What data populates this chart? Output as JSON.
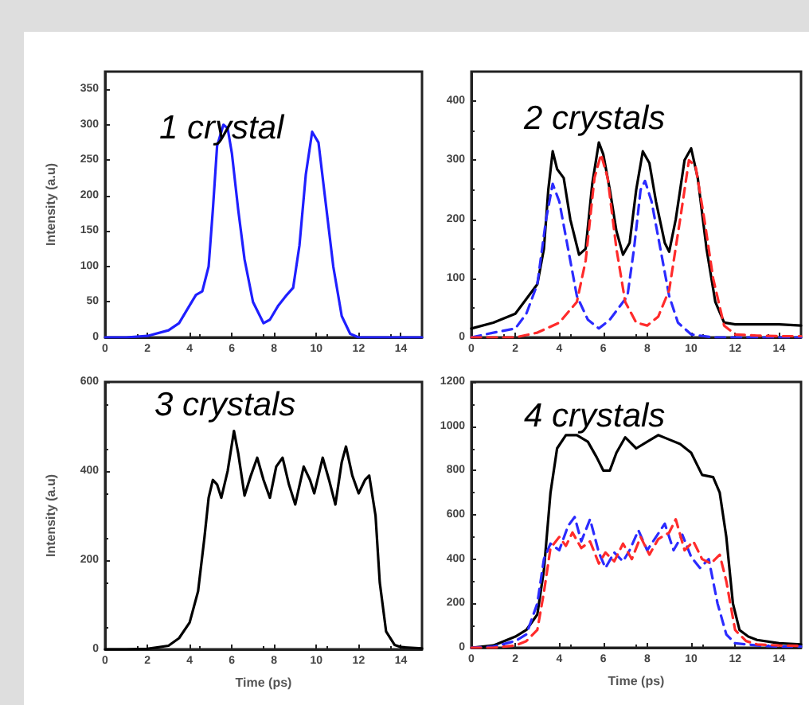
{
  "chart_data": [
    {
      "type": "line",
      "title": "1 crystal",
      "ylabel": "Intensity (a.u)",
      "xlim": [
        0,
        15
      ],
      "xticks": [
        0,
        2,
        4,
        6,
        8,
        10,
        12,
        14
      ],
      "ylim": [
        0,
        375
      ],
      "yticks": [
        0,
        50,
        100,
        150,
        200,
        250,
        300,
        350
      ],
      "grid": false,
      "marker": "none",
      "series": [
        {
          "color": "#1f1fff",
          "line_style": "solid",
          "x": [
            0,
            1,
            2,
            3,
            3.5,
            4,
            4.3,
            4.6,
            4.9,
            5.1,
            5.3,
            5.6,
            5.8,
            6.0,
            6.3,
            6.6,
            7.0,
            7.5,
            7.8,
            8.2,
            8.6,
            8.9,
            9.2,
            9.5,
            9.8,
            10.1,
            10.4,
            10.8,
            11.2,
            11.6,
            12,
            13,
            14,
            15
          ],
          "values": [
            0,
            0,
            2,
            10,
            20,
            45,
            60,
            65,
            100,
            180,
            270,
            300,
            295,
            260,
            180,
            110,
            50,
            20,
            25,
            45,
            60,
            70,
            130,
            230,
            290,
            275,
            200,
            100,
            30,
            5,
            0,
            0,
            0,
            0
          ]
        }
      ]
    },
    {
      "type": "line",
      "title": "2 crystals",
      "xlim": [
        0,
        15
      ],
      "xticks": [
        0,
        2,
        4,
        6,
        8,
        10,
        12,
        14
      ],
      "ylim": [
        0,
        450
      ],
      "yticks": [
        0,
        100,
        200,
        300,
        400
      ],
      "grid": false,
      "marker": "none",
      "series": [
        {
          "color": "#000000",
          "line_style": "solid",
          "x": [
            0,
            1,
            2,
            2.5,
            3,
            3.3,
            3.5,
            3.7,
            3.9,
            4.2,
            4.5,
            4.9,
            5.2,
            5.5,
            5.8,
            6.0,
            6.3,
            6.6,
            6.9,
            7.2,
            7.5,
            7.8,
            8.1,
            8.4,
            8.8,
            9.0,
            9.3,
            9.7,
            10.0,
            10.3,
            10.7,
            11.1,
            11.5,
            12,
            13,
            14,
            15
          ],
          "values": [
            15,
            25,
            40,
            65,
            90,
            150,
            250,
            315,
            285,
            270,
            200,
            140,
            150,
            260,
            330,
            310,
            250,
            180,
            140,
            160,
            250,
            315,
            295,
            230,
            160,
            145,
            200,
            300,
            320,
            270,
            150,
            60,
            25,
            22,
            22,
            22,
            20
          ]
        },
        {
          "color": "#2b2bff",
          "line_style": "dashed",
          "x": [
            0,
            1,
            2,
            2.5,
            3,
            3.4,
            3.7,
            4.0,
            4.4,
            4.8,
            5.3,
            5.8,
            6.3,
            6.8,
            7.1,
            7.4,
            7.7,
            7.9,
            8.2,
            8.6,
            9.0,
            9.4,
            10,
            11,
            12,
            13,
            14,
            15
          ],
          "values": [
            0,
            8,
            15,
            40,
            90,
            200,
            260,
            230,
            150,
            70,
            30,
            15,
            30,
            55,
            70,
            150,
            250,
            265,
            230,
            150,
            70,
            25,
            5,
            0,
            0,
            0,
            0,
            0
          ]
        },
        {
          "color": "#ff2b2b",
          "line_style": "dashed",
          "x": [
            0,
            2,
            3,
            4,
            4.8,
            5.2,
            5.6,
            5.9,
            6.2,
            6.6,
            7.0,
            7.5,
            8.0,
            8.5,
            9.0,
            9.5,
            9.9,
            10.2,
            10.6,
            11.0,
            11.5,
            12,
            13,
            14,
            15
          ],
          "values": [
            0,
            0,
            8,
            25,
            60,
            130,
            270,
            310,
            270,
            150,
            60,
            25,
            20,
            35,
            80,
            200,
            300,
            290,
            200,
            100,
            20,
            5,
            3,
            2,
            2
          ]
        }
      ]
    },
    {
      "type": "line",
      "title": "3 crystals",
      "xlabel": "Time (ps)",
      "ylabel": "Intensity (a.u)",
      "xlim": [
        0,
        15
      ],
      "xticks": [
        0,
        2,
        4,
        6,
        8,
        10,
        12,
        14
      ],
      "ylim": [
        0,
        600
      ],
      "yticks": [
        0,
        200,
        400,
        600
      ],
      "grid": false,
      "marker": "none",
      "series": [
        {
          "color": "#000000",
          "line_style": "solid",
          "x": [
            0,
            1,
            2,
            3,
            3.5,
            4,
            4.4,
            4.7,
            4.9,
            5.1,
            5.3,
            5.5,
            5.8,
            6.1,
            6.3,
            6.6,
            6.9,
            7.2,
            7.5,
            7.8,
            8.1,
            8.4,
            8.7,
            9.0,
            9.4,
            9.7,
            9.9,
            10.3,
            10.6,
            10.9,
            11.2,
            11.4,
            11.7,
            12.0,
            12.3,
            12.5,
            12.8,
            13.0,
            13.3,
            13.7,
            14,
            15
          ],
          "values": [
            0,
            0,
            1,
            8,
            25,
            60,
            130,
            250,
            340,
            380,
            370,
            340,
            400,
            490,
            440,
            345,
            390,
            430,
            380,
            340,
            410,
            430,
            370,
            325,
            410,
            380,
            350,
            430,
            380,
            325,
            420,
            455,
            390,
            350,
            380,
            390,
            300,
            150,
            40,
            10,
            5,
            2
          ]
        }
      ]
    },
    {
      "type": "line",
      "title": "4 crystals",
      "xlabel": "Time (ps)",
      "xlim": [
        0,
        15
      ],
      "xticks": [
        0,
        2,
        4,
        6,
        8,
        10,
        12,
        14
      ],
      "ylim": [
        0,
        1200
      ],
      "yticks": [
        0,
        200,
        400,
        600,
        800,
        1000,
        1200
      ],
      "grid": false,
      "marker": "none",
      "series": [
        {
          "color": "#000000",
          "line_style": "solid",
          "x": [
            0,
            1,
            2,
            2.5,
            3,
            3.3,
            3.6,
            3.9,
            4.3,
            4.8,
            5.3,
            5.7,
            6.0,
            6.3,
            6.6,
            7.0,
            7.5,
            8.0,
            8.5,
            9.0,
            9.5,
            10.0,
            10.5,
            11.0,
            11.3,
            11.6,
            11.9,
            12.2,
            12.6,
            13,
            14,
            15
          ],
          "values": [
            0,
            10,
            50,
            80,
            150,
            350,
            700,
            900,
            960,
            960,
            930,
            860,
            800,
            800,
            880,
            950,
            900,
            930,
            960,
            940,
            920,
            880,
            780,
            770,
            700,
            500,
            200,
            80,
            50,
            35,
            20,
            15
          ]
        },
        {
          "color": "#2b2bff",
          "line_style": "dashed",
          "x": [
            0,
            1,
            2,
            2.5,
            3,
            3.3,
            3.6,
            4.0,
            4.4,
            4.7,
            5.0,
            5.4,
            5.8,
            6.1,
            6.5,
            6.9,
            7.2,
            7.6,
            8.0,
            8.4,
            8.8,
            9.2,
            9.6,
            10.0,
            10.4,
            10.8,
            11.2,
            11.6,
            12,
            13,
            14,
            15
          ],
          "values": [
            0,
            5,
            30,
            60,
            200,
            400,
            470,
            440,
            550,
            590,
            480,
            580,
            430,
            360,
            430,
            390,
            440,
            530,
            440,
            500,
            560,
            440,
            510,
            410,
            360,
            400,
            200,
            60,
            20,
            10,
            5,
            5
          ]
        },
        {
          "color": "#ff2b2b",
          "line_style": "dashed",
          "x": [
            0,
            1,
            2,
            2.5,
            3,
            3.3,
            3.6,
            4.0,
            4.3,
            4.6,
            5.0,
            5.4,
            5.8,
            6.1,
            6.5,
            6.9,
            7.3,
            7.7,
            8.1,
            8.5,
            9.0,
            9.3,
            9.7,
            10.1,
            10.5,
            10.9,
            11.3,
            11.6,
            12,
            12.5,
            13,
            14,
            15
          ],
          "values": [
            0,
            0,
            10,
            30,
            80,
            250,
            450,
            500,
            460,
            520,
            450,
            480,
            380,
            430,
            390,
            470,
            400,
            500,
            420,
            490,
            520,
            580,
            440,
            480,
            400,
            380,
            420,
            300,
            80,
            30,
            15,
            10,
            8
          ]
        }
      ]
    }
  ]
}
